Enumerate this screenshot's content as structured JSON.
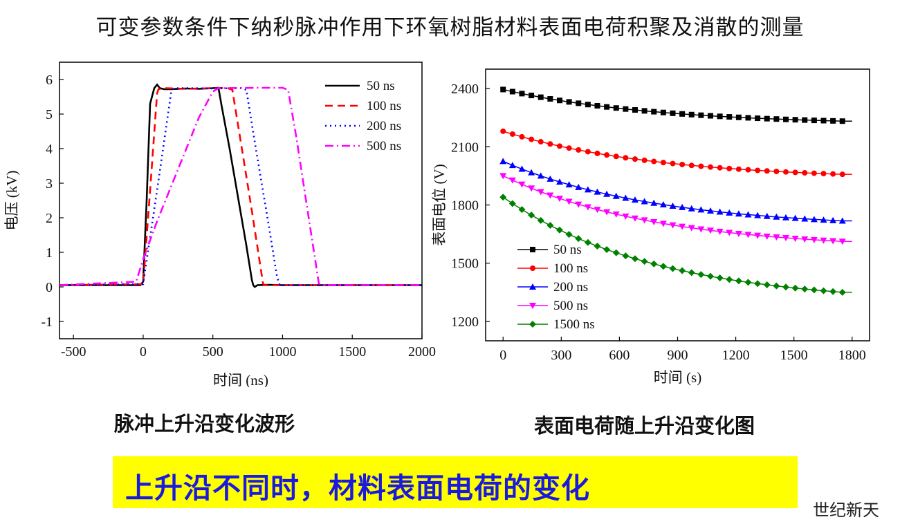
{
  "page": {
    "title": "可变参数条件下纳秒脉冲作用下环氧树脂材料表面电荷积聚及消散的测量",
    "caption_left": "脉冲上升沿变化波形",
    "caption_right": "表面电荷随上升沿变化图",
    "banner": "上升沿不同时，材料表面电荷的变化",
    "watermark": "世纪新天"
  },
  "chart_data": [
    {
      "type": "line",
      "xlabel": "时间 (ns)",
      "ylabel": "电压 (kV)",
      "xlim": [
        -600,
        2000
      ],
      "ylim": [
        -1.5,
        6.5
      ],
      "xticks": [
        -500,
        0,
        500,
        1000,
        1500,
        2000
      ],
      "yticks": [
        -1,
        0,
        1,
        2,
        3,
        4,
        5,
        6
      ],
      "legend_position": "top-right",
      "series": [
        {
          "name": "50 ns",
          "color": "#000000",
          "style": "solid",
          "x": [
            -600,
            -20,
            0,
            25,
            50,
            80,
            100,
            120,
            150,
            200,
            300,
            400,
            500,
            540,
            560,
            620,
            680,
            740,
            780,
            790,
            800,
            820,
            900,
            1000,
            2000
          ],
          "y": [
            0.05,
            0.05,
            0.15,
            2.5,
            5.3,
            5.75,
            5.85,
            5.75,
            5.72,
            5.72,
            5.74,
            5.73,
            5.75,
            5.76,
            5.3,
            4.0,
            2.6,
            1.2,
            0.2,
            0.05,
            0.0,
            0.05,
            0.06,
            0.05,
            0.05
          ]
        },
        {
          "name": "100 ns",
          "color": "#ff0000",
          "style": "dashed",
          "x": [
            -600,
            0,
            50,
            100,
            110,
            150,
            300,
            500,
            600,
            640,
            700,
            780,
            860,
            870,
            900,
            2000
          ],
          "y": [
            0.05,
            0.08,
            2.8,
            5.6,
            5.72,
            5.75,
            5.73,
            5.75,
            5.76,
            5.7,
            4.2,
            2.2,
            0.1,
            0.05,
            0.05,
            0.05
          ]
        },
        {
          "name": "200 ns",
          "color": "#0000ff",
          "style": "dotted",
          "x": [
            -600,
            0,
            100,
            200,
            220,
            300,
            500,
            700,
            740,
            800,
            900,
            960,
            980,
            1000,
            2000
          ],
          "y": [
            0.05,
            0.08,
            2.8,
            5.6,
            5.75,
            5.75,
            5.74,
            5.75,
            5.7,
            4.2,
            1.8,
            0.3,
            0.05,
            0.05,
            0.05
          ]
        },
        {
          "name": "500 ns",
          "color": "#ff00ff",
          "style": "dashdot",
          "x": [
            -600,
            -50,
            0,
            100,
            250,
            400,
            500,
            540,
            600,
            800,
            1000,
            1040,
            1100,
            1180,
            1260,
            1280,
            1300,
            2000
          ],
          "y": [
            0.05,
            0.15,
            0.8,
            1.9,
            3.4,
            4.9,
            5.65,
            5.75,
            5.75,
            5.76,
            5.76,
            5.7,
            4.3,
            2.2,
            0.1,
            0.05,
            0.05,
            0.05
          ]
        }
      ]
    },
    {
      "type": "line",
      "xlabel": "时间 (s)",
      "ylabel": "表面电位 (V)",
      "xlim": [
        -90,
        1890
      ],
      "ylim": [
        1100,
        2500
      ],
      "xticks": [
        0,
        300,
        600,
        900,
        1200,
        1500,
        1800
      ],
      "yticks": [
        1200,
        1500,
        1800,
        2100,
        2400
      ],
      "legend_position": "bottom-left",
      "series": [
        {
          "name": "50 ns",
          "color": "#000000",
          "marker": "square",
          "y0": 2395,
          "yend": 2232
        },
        {
          "name": "100 ns",
          "color": "#ff0000",
          "marker": "circle",
          "y0": 2180,
          "yend": 1958
        },
        {
          "name": "200 ns",
          "color": "#0000ff",
          "marker": "triangle-up",
          "y0": 2025,
          "yend": 1718
        },
        {
          "name": "500 ns",
          "color": "#ff00ff",
          "marker": "triangle-down",
          "y0": 1950,
          "yend": 1612
        },
        {
          "name": "1500 ns",
          "color": "#008000",
          "marker": "diamond",
          "y0": 1840,
          "yend": 1350
        }
      ]
    }
  ]
}
